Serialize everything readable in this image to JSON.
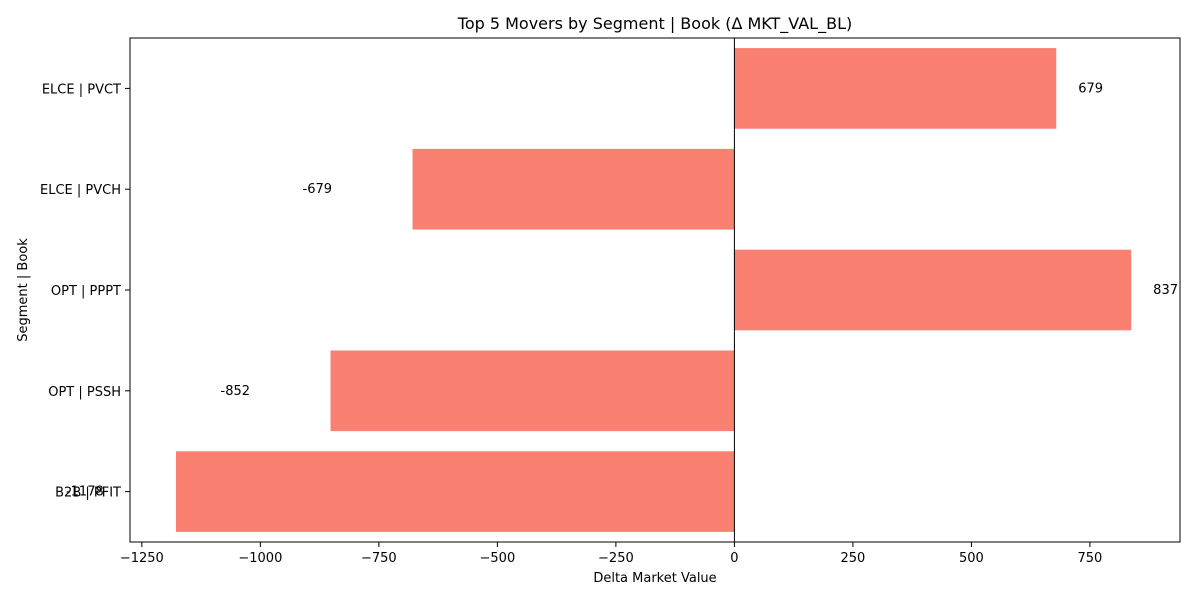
{
  "chart_data": {
    "type": "bar",
    "orientation": "horizontal",
    "title": "Top 5 Movers by Segment | Book (Δ MKT_VAL_BL)",
    "xlabel": "Delta Market Value",
    "ylabel": "Segment | Book",
    "categories": [
      "ELCE | PVCT",
      "ELCE | PVCH",
      "OPT | PPPT",
      "OPT | PSSH",
      "B2B | PFIT"
    ],
    "values": [
      679,
      -679,
      837,
      -852,
      -1178
    ],
    "data_labels": [
      "679",
      "-679",
      "837",
      "-852",
      "-1178"
    ],
    "xlim": [
      -1275,
      940
    ],
    "xticks": [
      -1250,
      -1000,
      -750,
      -500,
      -250,
      0,
      250,
      500,
      750
    ],
    "xtick_labels": [
      "−1250",
      "−1000",
      "−750",
      "−500",
      "−250",
      "0",
      "250",
      "500",
      "750"
    ],
    "bar_color": "#fa8072",
    "zero_line": true,
    "grid": false,
    "legend": "none"
  }
}
